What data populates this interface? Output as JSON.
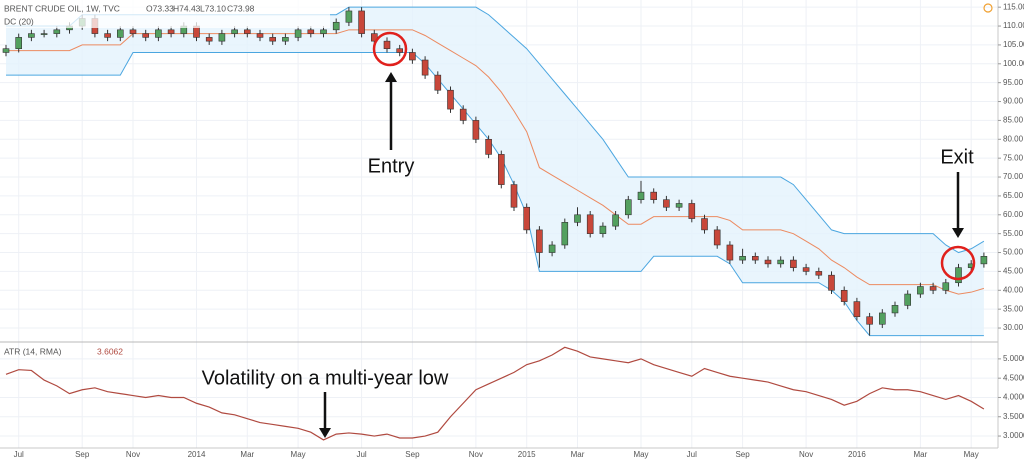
{
  "chart_data": [
    {
      "type": "candlestick",
      "title": "BRENT CRUDE OIL, 1W, TVC",
      "ohlc_text": [
        "O73.33",
        "H74.43",
        "L73.10",
        "C73.98"
      ],
      "indicator": "DC (20)",
      "annotations": [
        "Entry",
        "Exit"
      ],
      "categories": [
        null,
        "Jul",
        null,
        null,
        null,
        null,
        "Sep",
        null,
        null,
        null,
        "Nov",
        null,
        null,
        null,
        null,
        "2014",
        null,
        null,
        null,
        "Mar",
        null,
        null,
        null,
        "May",
        null,
        null,
        null,
        null,
        "Jul",
        null,
        null,
        null,
        "Sep",
        null,
        null,
        null,
        null,
        "Nov",
        null,
        null,
        null,
        "2015",
        null,
        null,
        null,
        "Mar",
        null,
        null,
        null,
        null,
        "May",
        null,
        null,
        null,
        "Jul",
        null,
        null,
        null,
        "Sep",
        null,
        null,
        null,
        null,
        "Nov",
        null,
        null,
        null,
        "2016",
        null,
        null,
        null,
        null,
        "Mar",
        null,
        null,
        null,
        "May",
        null
      ],
      "open": [
        103,
        104,
        107,
        108,
        108,
        109,
        110,
        112,
        108,
        107,
        109,
        108,
        107,
        109,
        108,
        110,
        107,
        106,
        108,
        109,
        108,
        107,
        106,
        107,
        109,
        108,
        109,
        111,
        114,
        108,
        106,
        104,
        103,
        101,
        97,
        93,
        88,
        85,
        80,
        76,
        68,
        62,
        56,
        50,
        52,
        58,
        60,
        55,
        57,
        60,
        64,
        66,
        64,
        62,
        63,
        59,
        56,
        52,
        48,
        49,
        48,
        47,
        48,
        46,
        45,
        44,
        40,
        37,
        33,
        31,
        34,
        36,
        39,
        41,
        40,
        42,
        46,
        47
      ],
      "high": [
        105,
        108,
        109,
        109,
        110,
        111,
        113,
        113,
        109,
        110,
        110,
        109,
        110,
        110,
        111,
        111,
        108,
        109,
        110,
        110,
        109,
        108,
        108,
        110,
        110,
        110,
        112,
        115,
        115,
        109,
        107,
        105,
        104,
        102,
        98,
        94,
        89,
        86,
        81,
        77,
        69,
        63,
        57,
        53,
        59,
        62,
        61,
        58,
        61,
        65,
        69,
        67,
        65,
        64,
        64,
        60,
        57,
        53,
        51,
        50,
        49,
        49,
        49,
        47,
        46,
        45,
        41,
        38,
        34,
        35,
        37,
        40,
        42,
        42,
        43,
        47,
        48,
        50
      ],
      "low": [
        102,
        103,
        106,
        107,
        107,
        108,
        109,
        107,
        106,
        106,
        107,
        106,
        106,
        107,
        107,
        106,
        105,
        105,
        107,
        107,
        106,
        105,
        105,
        106,
        107,
        107,
        108,
        110,
        107,
        105,
        103,
        102,
        100,
        96,
        92,
        87,
        84,
        79,
        75,
        67,
        61,
        55,
        46,
        49,
        51,
        57,
        54,
        54,
        56,
        59,
        63,
        63,
        61,
        61,
        58,
        55,
        51,
        47,
        47,
        47,
        46,
        46,
        45,
        44,
        43,
        39,
        36,
        32,
        28,
        30,
        33,
        35,
        38,
        39,
        39,
        41,
        45,
        46
      ],
      "close": [
        104,
        107,
        108,
        108,
        109,
        110,
        112,
        108,
        107,
        109,
        108,
        107,
        109,
        108,
        110,
        107,
        106,
        108,
        109,
        108,
        107,
        106,
        107,
        109,
        108,
        109,
        111,
        114,
        108,
        106,
        104,
        103,
        101,
        97,
        93,
        88,
        85,
        80,
        76,
        68,
        62,
        56,
        50,
        52,
        58,
        60,
        55,
        57,
        60,
        64,
        66,
        64,
        62,
        63,
        59,
        56,
        52,
        48,
        49,
        48,
        47,
        48,
        46,
        45,
        44,
        40,
        37,
        33,
        31,
        34,
        36,
        39,
        41,
        40,
        42,
        46,
        47,
        49
      ],
      "up_color": "#53a05f",
      "down_color": "#c8473a",
      "channel": {
        "upper": [
          110,
          110,
          110,
          110,
          110,
          110,
          113,
          113,
          113,
          113,
          113,
          113,
          113,
          113,
          113,
          113,
          113,
          113,
          113,
          113,
          113,
          113,
          113,
          113,
          113,
          113,
          113,
          115,
          115,
          115,
          115,
          115,
          115,
          115,
          115,
          115,
          115,
          115,
          113,
          110,
          107,
          104,
          100,
          96,
          92,
          88,
          84,
          80,
          75,
          70,
          70,
          70,
          70,
          70,
          70,
          70,
          70,
          70,
          70,
          70,
          70,
          70,
          68,
          64,
          60,
          56,
          55,
          55,
          55,
          55,
          55,
          55,
          55,
          55,
          52,
          50,
          51,
          53
        ],
        "lower": [
          97,
          97,
          97,
          97,
          97,
          97,
          97,
          97,
          97,
          97,
          103,
          103,
          103,
          103,
          103,
          103,
          103,
          103,
          103,
          103,
          103,
          103,
          103,
          103,
          103,
          103,
          103,
          103,
          103,
          103,
          103,
          103,
          103,
          100,
          96,
          92,
          88,
          84,
          80,
          75,
          68,
          60,
          45,
          45,
          45,
          45,
          45,
          45,
          45,
          45,
          45,
          49,
          49,
          49,
          49,
          49,
          49,
          47,
          42,
          42,
          42,
          42,
          42,
          42,
          42,
          40,
          37,
          32,
          28,
          28,
          28,
          28,
          28,
          28,
          28,
          28,
          28,
          28
        ],
        "basis": [
          103.5,
          103.5,
          103.5,
          103.5,
          103.5,
          103.5,
          105,
          105,
          105,
          105,
          108,
          108,
          108,
          108,
          108,
          108,
          108,
          108,
          108,
          108,
          108,
          108,
          108,
          108,
          108,
          108,
          108,
          109,
          109,
          109,
          109,
          109,
          109,
          107.5,
          105.5,
          103.5,
          101.5,
          99.5,
          96.5,
          92.5,
          87.5,
          82,
          72.5,
          70.5,
          68.5,
          66.5,
          64.5,
          62.5,
          60,
          57.5,
          57.5,
          59.5,
          59.5,
          59.5,
          59.5,
          59.5,
          59.5,
          58.5,
          56,
          56,
          56,
          56,
          55,
          53,
          51,
          48,
          46,
          43.5,
          41.5,
          41.5,
          41.5,
          41.5,
          41.5,
          41.5,
          40,
          39,
          39.5,
          40.5
        ]
      },
      "channel_color": "#4ba6e0",
      "basis_color": "#ec8a60",
      "fill_color": "#e3f2fd",
      "ylim": [
        26.3,
        116.9
      ],
      "yticks": [
        {
          "value": 30,
          "label": "30.00"
        },
        {
          "value": 35,
          "label": "35.00"
        },
        {
          "value": 40,
          "label": "40.00"
        },
        {
          "value": 45,
          "label": "45.00"
        },
        {
          "value": 50,
          "label": "50.00"
        },
        {
          "value": 55,
          "label": "55.00"
        },
        {
          "value": 60,
          "label": "60.00"
        },
        {
          "value": 65,
          "label": "65.00"
        },
        {
          "value": 70,
          "label": "70.00"
        },
        {
          "value": 75,
          "label": "75.00"
        },
        {
          "value": 80,
          "label": "80.00"
        },
        {
          "value": 85,
          "label": "85.00"
        },
        {
          "value": 90,
          "label": "90.00"
        },
        {
          "value": 95,
          "label": "95.00"
        },
        {
          "value": 100,
          "label": "100.00"
        },
        {
          "value": 105,
          "label": "105.00"
        },
        {
          "value": 110,
          "label": "110.00"
        },
        {
          "value": 115,
          "label": "115.00"
        }
      ],
      "grid": true
    },
    {
      "type": "line",
      "title": "ATR (14, RMA)",
      "last_value": 3.6062,
      "annotation": "Volatility on a multi-year low",
      "values": [
        4.6,
        4.72,
        4.7,
        4.45,
        4.3,
        4.1,
        4.2,
        4.25,
        4.15,
        4.1,
        4.05,
        4.0,
        4.05,
        4.0,
        4.0,
        3.85,
        3.75,
        3.6,
        3.55,
        3.45,
        3.35,
        3.3,
        3.25,
        3.2,
        3.1,
        2.9,
        3.05,
        3.08,
        3.05,
        3.0,
        3.05,
        2.95,
        2.95,
        3.0,
        3.1,
        3.5,
        3.85,
        4.2,
        4.35,
        4.5,
        4.65,
        4.85,
        4.95,
        5.1,
        5.3,
        5.2,
        5.05,
        5.0,
        4.95,
        4.9,
        5.0,
        4.85,
        4.75,
        4.65,
        4.55,
        4.75,
        4.65,
        4.55,
        4.5,
        4.45,
        4.4,
        4.3,
        4.2,
        4.15,
        4.05,
        3.95,
        3.8,
        3.9,
        4.1,
        4.25,
        4.2,
        4.2,
        4.15,
        4.05,
        3.95,
        4.05,
        3.9,
        3.7
      ],
      "color": "#b04a40",
      "ylim": [
        2.69,
        5.36
      ],
      "yticks": [
        {
          "value": 3,
          "label": "3.0000"
        },
        {
          "value": 3.5,
          "label": "3.5000"
        },
        {
          "value": 4,
          "label": "4.0000"
        },
        {
          "value": 4.5,
          "label": "4.5000"
        },
        {
          "value": 5,
          "label": "5.0000"
        }
      ],
      "grid": true
    }
  ]
}
